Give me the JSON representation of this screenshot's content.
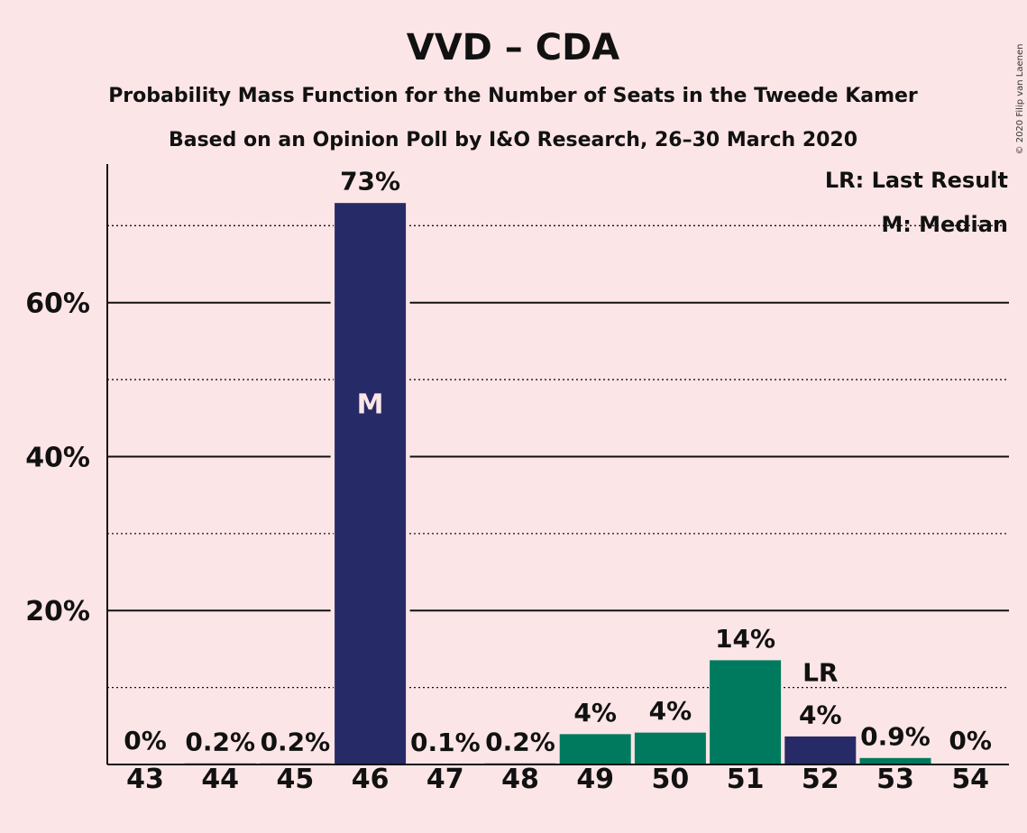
{
  "chart_data": {
    "type": "bar",
    "title": "VVD – CDA",
    "subtitle": "Probability Mass Function for the Number of Seats in the Tweede Kamer",
    "subtitle2": "Based on an Opinion Poll by I&O Research, 26–30 March 2020",
    "copyright": "© 2020 Filip van Laenen",
    "categories": [
      "43",
      "44",
      "45",
      "46",
      "47",
      "48",
      "49",
      "50",
      "51",
      "52",
      "53",
      "54"
    ],
    "values": [
      0,
      0.2,
      0.2,
      73,
      0.1,
      0.2,
      4,
      4.2,
      13.6,
      3.7,
      0.9,
      0
    ],
    "data_labels": [
      "0%",
      "0.2%",
      "0.2%",
      "73%",
      "0.1%",
      "0.2%",
      "4%",
      "4%",
      "14%",
      "4%",
      "0.9%",
      "0%"
    ],
    "bar_colors": [
      "#262A66",
      "#262A66",
      "#262A66",
      "#262A66",
      "#262A66",
      "#262A66",
      "#007A5E",
      "#007A5E",
      "#007A5E",
      "#262A66",
      "#007A5E",
      "#007A5E"
    ],
    "ylim": [
      0,
      78
    ],
    "yticks": [
      20,
      40,
      60
    ],
    "ytick_labels": [
      "20%",
      "40%",
      "60%"
    ],
    "minor_gridlines": [
      10,
      30,
      50,
      70
    ],
    "grid": true,
    "median_seat": "46",
    "median_marker": "M",
    "last_result_seat": "52",
    "last_result_marker": "LR",
    "legend": [
      "LR: Last Result",
      "M: Median"
    ],
    "legend_position": "top-right"
  }
}
